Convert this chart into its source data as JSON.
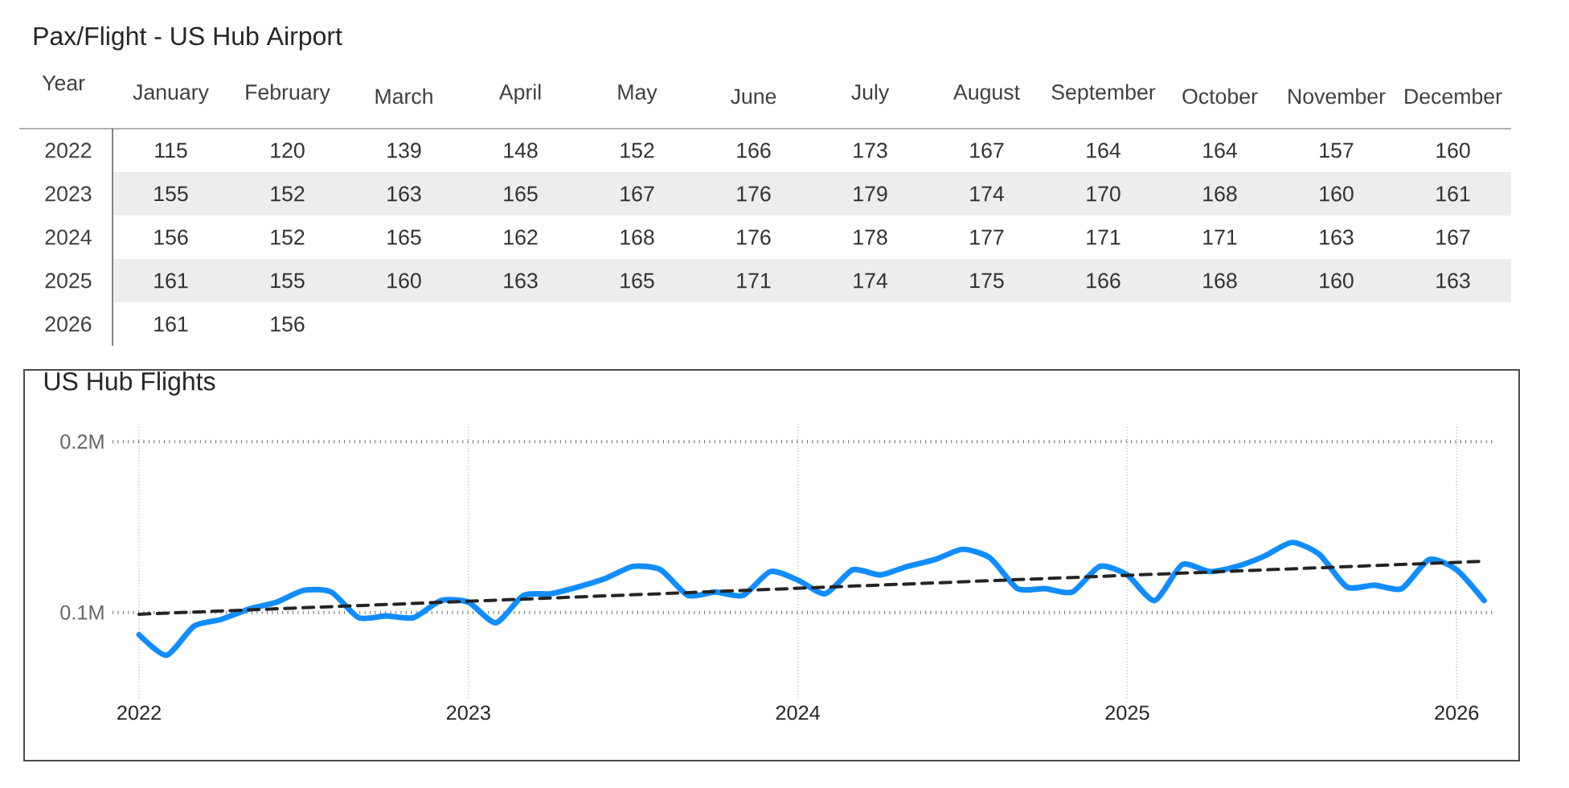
{
  "chart_data": [
    {
      "type": "heatmap",
      "title": "Pax/Flight - US Hub Airport",
      "ylabel": "Year",
      "categories": [
        "January",
        "February",
        "March",
        "April",
        "May",
        "June",
        "July",
        "August",
        "September",
        "October",
        "November",
        "December"
      ],
      "y_categories": [
        "2022",
        "2023",
        "2024",
        "2025",
        "2026"
      ],
      "cells": [
        [
          115,
          120,
          139,
          148,
          152,
          166,
          173,
          167,
          164,
          164,
          157,
          160
        ],
        [
          155,
          152,
          163,
          165,
          167,
          176,
          179,
          174,
          170,
          168,
          160,
          161
        ],
        [
          156,
          152,
          165,
          162,
          168,
          176,
          178,
          177,
          171,
          171,
          163,
          167
        ],
        [
          161,
          155,
          160,
          163,
          165,
          171,
          174,
          175,
          166,
          168,
          160,
          163
        ],
        [
          161,
          156,
          null,
          null,
          null,
          null,
          null,
          null,
          null,
          null,
          null,
          null
        ]
      ],
      "data_labels": true
    },
    {
      "type": "line",
      "title": "US Hub Flights",
      "xlim": [
        "2021-12-02",
        "2026-02-13"
      ],
      "ylim": [
        50000,
        210000
      ],
      "xticks": [
        "2022",
        "2023",
        "2024",
        "2025",
        "2026"
      ],
      "yticks": [
        {
          "value": 100000,
          "label": "0.1M"
        },
        {
          "value": 200000,
          "label": "0.2M"
        }
      ],
      "grid": true,
      "series": [
        {
          "color": "#118dff",
          "x": [
            "2022-01",
            "2022-02",
            "2022-03",
            "2022-04",
            "2022-05",
            "2022-06",
            "2022-07",
            "2022-08",
            "2022-09",
            "2022-10",
            "2022-11",
            "2022-12",
            "2023-01",
            "2023-02",
            "2023-03",
            "2023-04",
            "2023-05",
            "2023-06",
            "2023-07",
            "2023-08",
            "2023-09",
            "2023-10",
            "2023-11",
            "2023-12",
            "2024-01",
            "2024-02",
            "2024-03",
            "2024-04",
            "2024-05",
            "2024-06",
            "2024-07",
            "2024-08",
            "2024-09",
            "2024-10",
            "2024-11",
            "2024-12",
            "2025-01",
            "2025-02",
            "2025-03",
            "2025-04",
            "2025-05",
            "2025-06",
            "2025-07",
            "2025-08",
            "2025-09",
            "2025-10",
            "2025-11",
            "2025-12",
            "2026-01",
            "2026-02"
          ],
          "values": [
            87000,
            75000,
            92000,
            96000,
            102000,
            106000,
            113000,
            112000,
            97000,
            98000,
            97000,
            107000,
            106000,
            94000,
            110000,
            111000,
            115000,
            120000,
            127000,
            125000,
            110000,
            112000,
            110000,
            124000,
            119000,
            111000,
            125000,
            122000,
            127000,
            131000,
            137000,
            132000,
            114000,
            114000,
            112000,
            127000,
            122000,
            107000,
            128000,
            124000,
            127000,
            133000,
            141000,
            134000,
            115000,
            116000,
            114000,
            131000,
            125000,
            107000
          ]
        },
        {
          "type": "line",
          "color": "#252423",
          "line_style": "dashed",
          "x": [
            "2022-01",
            "2026-02"
          ],
          "values": [
            99000,
            130000
          ]
        }
      ]
    }
  ]
}
